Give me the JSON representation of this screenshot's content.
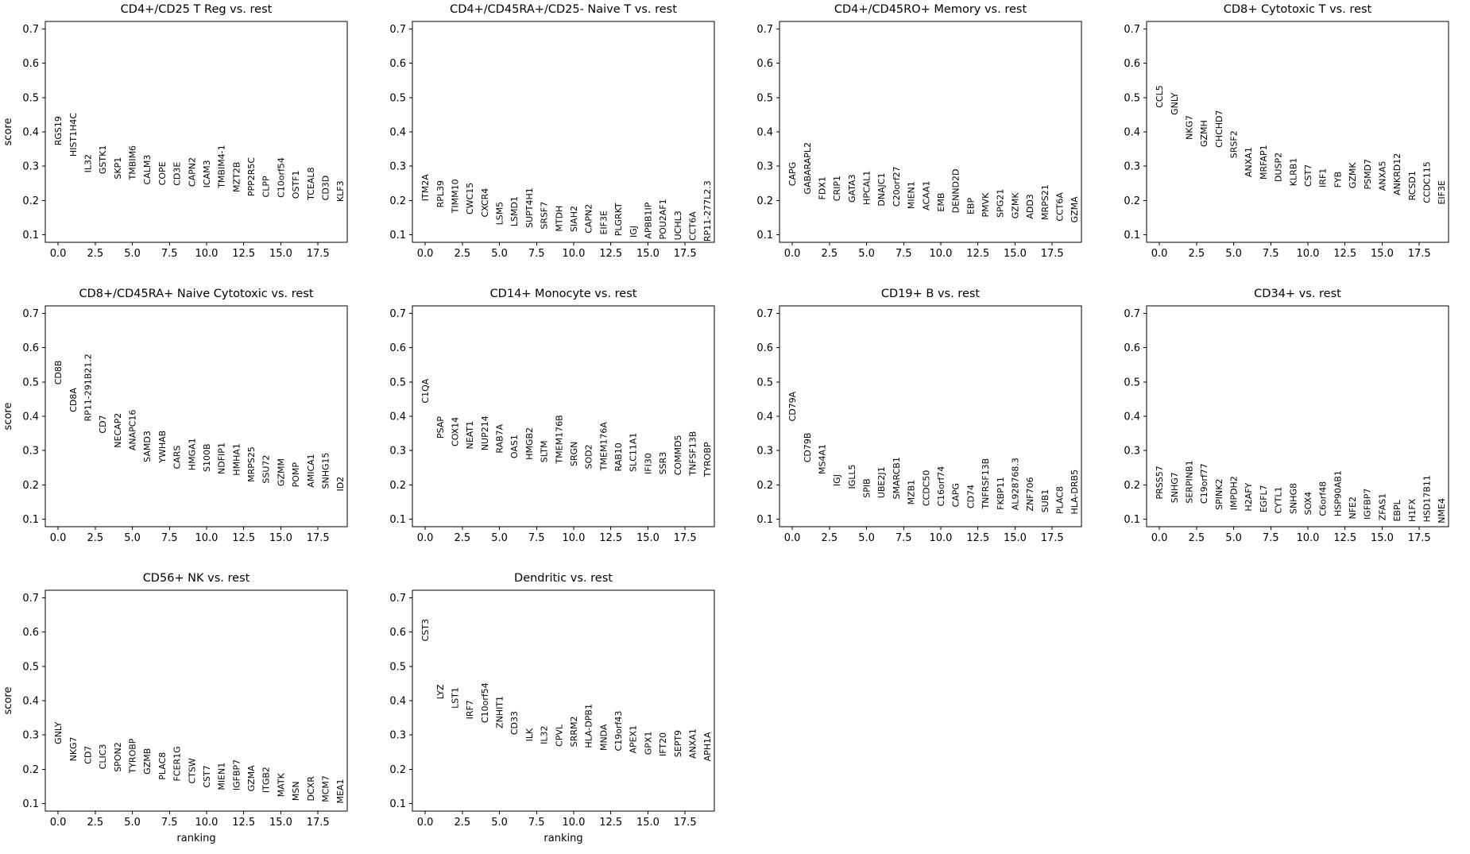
{
  "figure": {
    "background": "#ffffff",
    "text_color": "#000000",
    "spine_color": "#000000",
    "description": "scanpy rank_genes_groups panel grid: top ranked marker genes per cell-type group"
  },
  "chart_data": [
    {
      "type": "scatter",
      "title": "CD4+/CD25 T Reg vs. rest",
      "xlabel": "",
      "ylabel": "score",
      "xlim": [
        -0.86,
        19.47
      ],
      "ylim": [
        0.078,
        0.722
      ],
      "xticks": [
        0.0,
        2.5,
        5.0,
        7.5,
        10.0,
        12.5,
        15.0,
        17.5
      ],
      "yticks": [
        0.1,
        0.2,
        0.3,
        0.4,
        0.5,
        0.6,
        0.7
      ],
      "genes": [
        "RGS19",
        "HIST1H4C",
        "IL32",
        "GSTK1",
        "SKP1",
        "TMBIM6",
        "CALM3",
        "COPE",
        "CD3E",
        "CAPN2",
        "ICAM3",
        "TMBIM4-1",
        "MZT2B",
        "PPP2R5C",
        "CLPP",
        "C10orf54",
        "OSTF1",
        "TCEAL8",
        "CD3D",
        "KLF3"
      ],
      "scores": [
        0.36,
        0.328,
        0.281,
        0.277,
        0.262,
        0.26,
        0.246,
        0.244,
        0.243,
        0.24,
        0.237,
        0.236,
        0.224,
        0.212,
        0.209,
        0.208,
        0.205,
        0.201,
        0.2,
        0.196
      ]
    },
    {
      "type": "scatter",
      "title": "CD4+/CD45RA+/CD25- Naive T vs. rest",
      "xlabel": "",
      "ylabel": "",
      "xlim": [
        -0.86,
        19.47
      ],
      "ylim": [
        0.078,
        0.722
      ],
      "xticks": [
        0.0,
        2.5,
        5.0,
        7.5,
        10.0,
        12.5,
        15.0,
        17.5
      ],
      "yticks": [
        0.1,
        0.2,
        0.3,
        0.4,
        0.5,
        0.6,
        0.7
      ],
      "genes": [
        "ITM2A",
        "RPL39",
        "TIMM10",
        "CWC15",
        "CXCR4",
        "LSM5",
        "LSMD1",
        "SUPT4H1",
        "SRSF7",
        "MTDH",
        "SIAH2",
        "CAPN2",
        "EIF3E",
        "PLGRKT",
        "IGJ",
        "APBB1IP",
        "POU2AF1",
        "UCHL3",
        "CCT6A",
        "RP11-277L2.3"
      ],
      "scores": [
        0.198,
        0.179,
        0.163,
        0.159,
        0.151,
        0.128,
        0.124,
        0.12,
        0.116,
        0.109,
        0.108,
        0.104,
        0.1,
        0.096,
        0.092,
        0.088,
        0.086,
        0.084,
        0.083,
        0.08
      ]
    },
    {
      "type": "scatter",
      "title": "CD4+/CD45RO+ Memory vs. rest",
      "xlabel": "",
      "ylabel": "",
      "xlim": [
        -0.86,
        19.47
      ],
      "ylim": [
        0.078,
        0.722
      ],
      "xticks": [
        0.0,
        2.5,
        5.0,
        7.5,
        10.0,
        12.5,
        15.0,
        17.5
      ],
      "yticks": [
        0.1,
        0.2,
        0.3,
        0.4,
        0.5,
        0.6,
        0.7
      ],
      "genes": [
        "CAPG",
        "GABARAPL2",
        "FDX1",
        "CRIP1",
        "GATA3",
        "HPCAL1",
        "DNAJC1",
        "C20orf27",
        "MIEN1",
        "ACAA1",
        "EMB",
        "DENND2D",
        "EBP",
        "PMVK",
        "SPG21",
        "GZMK",
        "ADD3",
        "MRPS21",
        "CCT6A",
        "GZMA"
      ],
      "scores": [
        0.242,
        0.218,
        0.202,
        0.198,
        0.194,
        0.187,
        0.183,
        0.182,
        0.175,
        0.171,
        0.167,
        0.163,
        0.159,
        0.151,
        0.15,
        0.147,
        0.146,
        0.143,
        0.139,
        0.135
      ]
    },
    {
      "type": "scatter",
      "title": "CD8+ Cytotoxic T vs. rest",
      "xlabel": "",
      "ylabel": "",
      "xlim": [
        -0.86,
        19.47
      ],
      "ylim": [
        0.078,
        0.722
      ],
      "xticks": [
        0.0,
        2.5,
        5.0,
        7.5,
        10.0,
        12.5,
        15.0,
        17.5
      ],
      "yticks": [
        0.1,
        0.2,
        0.3,
        0.4,
        0.5,
        0.6,
        0.7
      ],
      "genes": [
        "CCL5",
        "GNLY",
        "NKG7",
        "GZMH",
        "CHCHD7",
        "SRSF2",
        "ANXA1",
        "MRFAP1",
        "DUSP2",
        "KLRB1",
        "CST7",
        "IRF1",
        "FYB",
        "GZMK",
        "PSMD7",
        "ANXA5",
        "ANKRD12",
        "RCSD1",
        "CCDC115",
        "EIF3E"
      ],
      "scores": [
        0.47,
        0.449,
        0.377,
        0.356,
        0.354,
        0.323,
        0.268,
        0.261,
        0.254,
        0.242,
        0.24,
        0.238,
        0.237,
        0.235,
        0.232,
        0.228,
        0.215,
        0.2,
        0.192,
        0.188
      ]
    },
    {
      "type": "scatter",
      "title": "CD8+/CD45RA+ Naive Cytotoxic vs. rest",
      "xlabel": "",
      "ylabel": "score",
      "xlim": [
        -0.86,
        19.47
      ],
      "ylim": [
        0.078,
        0.722
      ],
      "xticks": [
        0.0,
        2.5,
        5.0,
        7.5,
        10.0,
        12.5,
        15.0,
        17.5
      ],
      "yticks": [
        0.1,
        0.2,
        0.3,
        0.4,
        0.5,
        0.6,
        0.7
      ],
      "genes": [
        "CD8B",
        "CD8A",
        "RP11-291B21.2",
        "CD7",
        "NECAP2",
        "ANAPC16",
        "SAMD3",
        "YWHAB",
        "CARS",
        "HMGA1",
        "S100B",
        "NDFIP1",
        "HMHA1",
        "MRPS25",
        "SSU72",
        "GZMM",
        "POMP",
        "AMICA1",
        "SNHG15",
        "ID2"
      ],
      "scores": [
        0.492,
        0.412,
        0.385,
        0.35,
        0.308,
        0.3,
        0.266,
        0.264,
        0.246,
        0.242,
        0.238,
        0.231,
        0.227,
        0.208,
        0.204,
        0.196,
        0.193,
        0.192,
        0.188,
        0.181
      ]
    },
    {
      "type": "scatter",
      "title": "CD14+ Monocyte vs. rest",
      "xlabel": "",
      "ylabel": "",
      "xlim": [
        -0.86,
        19.47
      ],
      "ylim": [
        0.078,
        0.722
      ],
      "xticks": [
        0.0,
        2.5,
        5.0,
        7.5,
        10.0,
        12.5,
        15.0,
        17.5
      ],
      "yticks": [
        0.1,
        0.2,
        0.3,
        0.4,
        0.5,
        0.6,
        0.7
      ],
      "genes": [
        "C1QA",
        "PSAP",
        "COX14",
        "NEAT1",
        "NUP214",
        "RAB7A",
        "OAS1",
        "HMGB2",
        "SLTM",
        "TMEM176B",
        "SRGN",
        "SOD2",
        "TMEM176A",
        "RAB10",
        "SLC11A1",
        "IFI30",
        "SSR3",
        "COMMD5",
        "TNFSF13B",
        "TYROBP"
      ],
      "scores": [
        0.438,
        0.335,
        0.312,
        0.304,
        0.3,
        0.292,
        0.277,
        0.273,
        0.265,
        0.262,
        0.254,
        0.246,
        0.242,
        0.239,
        0.238,
        0.231,
        0.23,
        0.228,
        0.227,
        0.223
      ]
    },
    {
      "type": "scatter",
      "title": "CD19+ B vs. rest",
      "xlabel": "",
      "ylabel": "",
      "xlim": [
        -0.86,
        19.47
      ],
      "ylim": [
        0.078,
        0.722
      ],
      "xticks": [
        0.0,
        2.5,
        5.0,
        7.5,
        10.0,
        12.5,
        15.0,
        17.5
      ],
      "yticks": [
        0.1,
        0.2,
        0.3,
        0.4,
        0.5,
        0.6,
        0.7
      ],
      "genes": [
        "CD79A",
        "CD79B",
        "MS4A1",
        "IGJ",
        "IGLL5",
        "SPIB",
        "UBE2J1",
        "SMARCB1",
        "MZB1",
        "CCDC50",
        "C16orf74",
        "CAPG",
        "CD74",
        "TNFRSF13B",
        "FKBP11",
        "AL928768.3",
        "ZNF706",
        "SUB1",
        "PLAC8",
        "HLA-DRB5"
      ],
      "scores": [
        0.385,
        0.265,
        0.231,
        0.196,
        0.188,
        0.162,
        0.161,
        0.158,
        0.142,
        0.138,
        0.137,
        0.135,
        0.131,
        0.13,
        0.127,
        0.126,
        0.123,
        0.119,
        0.115,
        0.114
      ]
    },
    {
      "type": "scatter",
      "title": "CD34+ vs. rest",
      "xlabel": "",
      "ylabel": "",
      "xlim": [
        -0.86,
        19.47
      ],
      "ylim": [
        0.078,
        0.722
      ],
      "xticks": [
        0.0,
        2.5,
        5.0,
        7.5,
        10.0,
        12.5,
        15.0,
        17.5
      ],
      "yticks": [
        0.1,
        0.2,
        0.3,
        0.4,
        0.5,
        0.6,
        0.7
      ],
      "genes": [
        "PRSS57",
        "SNHG7",
        "SERPINB1",
        "C19orf77",
        "SPINK2",
        "IMPDH2",
        "H2AFY",
        "EGFL7",
        "CYTL1",
        "SNHG8",
        "SOX4",
        "C6orf48",
        "HSP90AB1",
        "NFE2",
        "IGFBP7",
        "ZFAS1",
        "EBPL",
        "H1FX",
        "HSD17B11",
        "NME4"
      ],
      "scores": [
        0.158,
        0.147,
        0.146,
        0.145,
        0.127,
        0.126,
        0.123,
        0.119,
        0.116,
        0.115,
        0.112,
        0.109,
        0.108,
        0.1,
        0.099,
        0.096,
        0.093,
        0.092,
        0.091,
        0.088
      ]
    },
    {
      "type": "scatter",
      "title": "CD56+ NK vs. rest",
      "xlabel": "ranking",
      "ylabel": "score",
      "xlim": [
        -0.86,
        19.47
      ],
      "ylim": [
        0.078,
        0.722
      ],
      "xticks": [
        0.0,
        2.5,
        5.0,
        7.5,
        10.0,
        12.5,
        15.0,
        17.5
      ],
      "yticks": [
        0.1,
        0.2,
        0.3,
        0.4,
        0.5,
        0.6,
        0.7
      ],
      "genes": [
        "GNLY",
        "NKG7",
        "CD7",
        "CLIC3",
        "SPON2",
        "TYROBP",
        "GZMB",
        "PLAC8",
        "FCER1G",
        "CTSW",
        "CST7",
        "MIEN1",
        "IGFBP7",
        "GZMA",
        "ITGB2",
        "MATK",
        "MSN",
        "DCXR",
        "MCM7",
        "MEA1"
      ],
      "scores": [
        0.273,
        0.223,
        0.215,
        0.2,
        0.192,
        0.188,
        0.185,
        0.169,
        0.165,
        0.158,
        0.146,
        0.139,
        0.138,
        0.135,
        0.131,
        0.119,
        0.108,
        0.107,
        0.104,
        0.1
      ]
    },
    {
      "type": "scatter",
      "title": "Dendritic vs. rest",
      "xlabel": "ranking",
      "ylabel": "",
      "xlim": [
        -0.86,
        19.47
      ],
      "ylim": [
        0.078,
        0.722
      ],
      "xticks": [
        0.0,
        2.5,
        5.0,
        7.5,
        10.0,
        12.5,
        15.0,
        17.5
      ],
      "yticks": [
        0.1,
        0.2,
        0.3,
        0.4,
        0.5,
        0.6,
        0.7
      ],
      "genes": [
        "CST3",
        "LYZ",
        "LST1",
        "IRF7",
        "C10orf54",
        "ZNHIT1",
        "CD33",
        "ILK",
        "IL32",
        "CPVL",
        "SRRM2",
        "HLA-DPB1",
        "MNDA",
        "C19orf43",
        "APEX1",
        "GPX1",
        "IFT20",
        "SEPT9",
        "ANXA1",
        "APH1A"
      ],
      "scores": [
        0.573,
        0.404,
        0.377,
        0.346,
        0.335,
        0.319,
        0.3,
        0.281,
        0.273,
        0.266,
        0.265,
        0.262,
        0.254,
        0.253,
        0.246,
        0.242,
        0.238,
        0.235,
        0.231,
        0.223
      ]
    }
  ]
}
